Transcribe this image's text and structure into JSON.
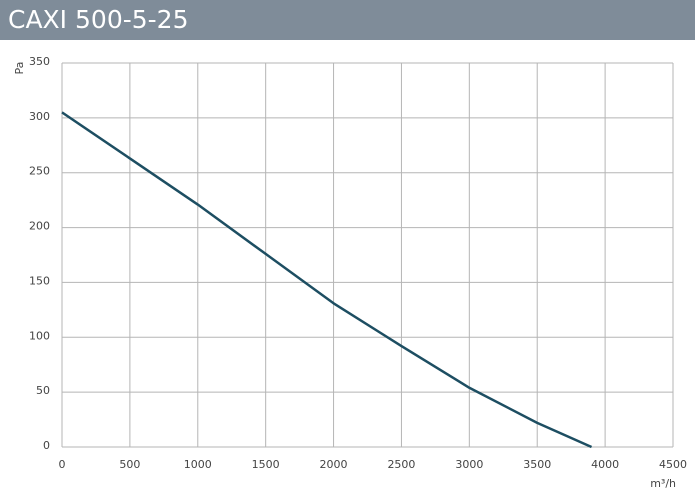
{
  "chart_data": {
    "type": "line",
    "title": "CAXI 500-5-25",
    "y_label": "Pa",
    "x_label": "m³/h",
    "x": [
      0,
      500,
      1000,
      1500,
      2000,
      2500,
      3000,
      3500,
      3900
    ],
    "values": [
      305,
      263,
      221,
      176,
      131,
      92,
      54,
      22,
      0
    ],
    "color": "#1d4e62",
    "xlim": [
      0,
      4500
    ],
    "xticks": [
      0,
      500,
      1000,
      1500,
      2000,
      2500,
      3000,
      3500,
      4000,
      4500
    ],
    "ylim": [
      0,
      350
    ],
    "yticks": [
      0,
      50,
      100,
      150,
      200,
      250,
      300,
      350
    ],
    "grid": true
  }
}
